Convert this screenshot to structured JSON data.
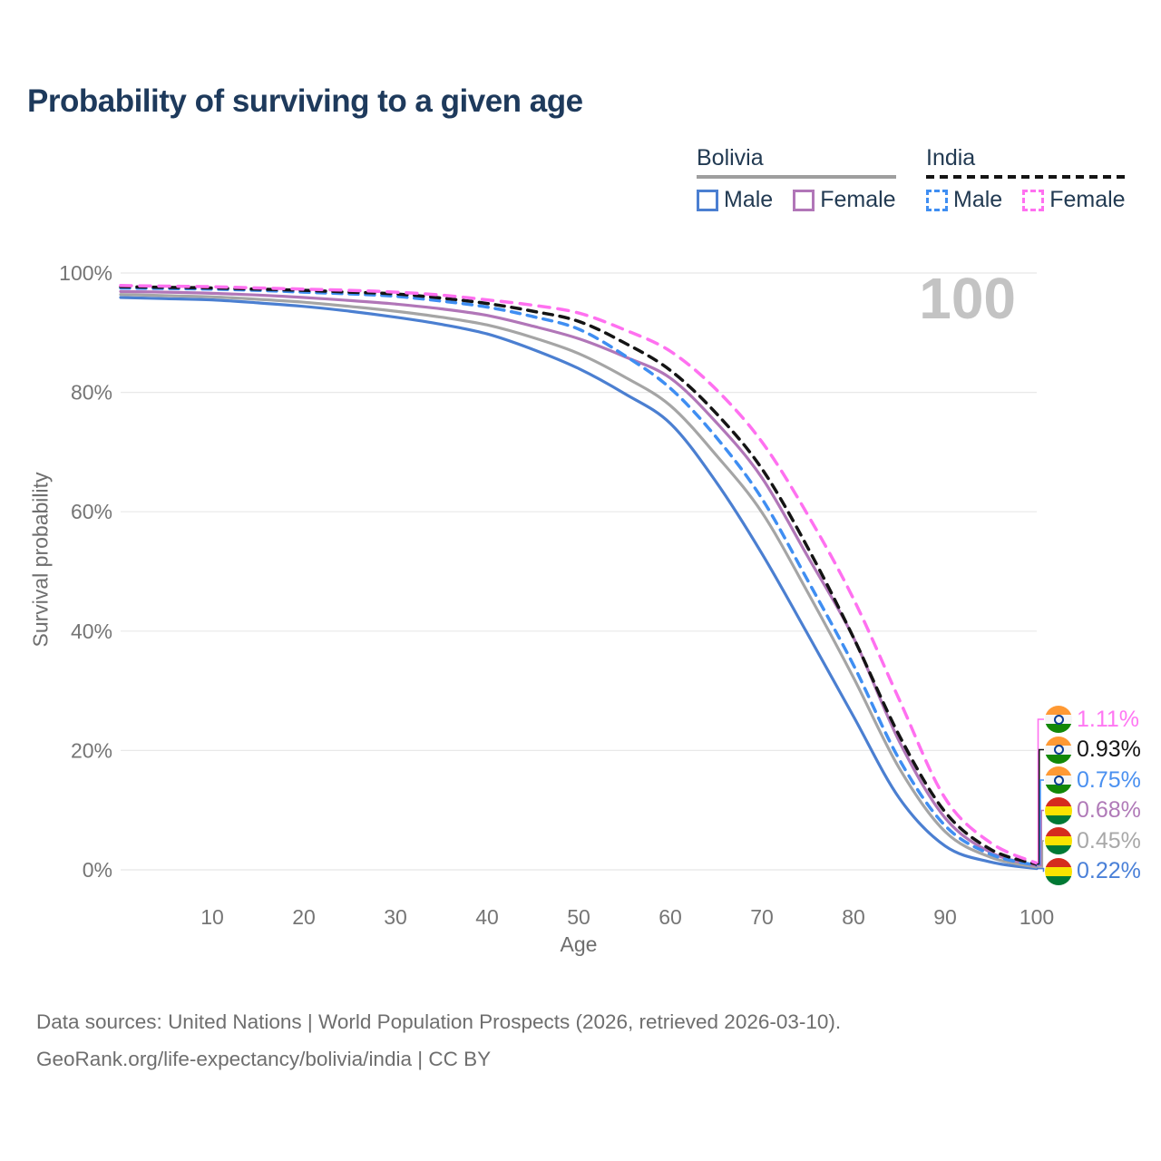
{
  "title": "Probability of surviving to a given age",
  "watermark_age": "100",
  "legend": {
    "groups": [
      {
        "country": "Bolivia",
        "rule_style": "solid",
        "rule_color": "#9e9e9e",
        "items": [
          {
            "label": "Male",
            "color": "#4b7fd1",
            "dashed": false
          },
          {
            "label": "Female",
            "color": "#b176b8",
            "dashed": false
          }
        ]
      },
      {
        "country": "India",
        "rule_style": "dashed",
        "rule_color": "#141414",
        "items": [
          {
            "label": "Male",
            "color": "#3f8ef2",
            "dashed": true
          },
          {
            "label": "Female",
            "color": "#ff70f0",
            "dashed": true
          }
        ]
      }
    ]
  },
  "chart_data": {
    "type": "line",
    "title": "Probability of surviving to a given age",
    "xlabel": "Age",
    "ylabel": "Survival probability",
    "xlim": [
      0,
      100
    ],
    "ylim": [
      0,
      100
    ],
    "grid": "horizontal",
    "legend_position": "top-right",
    "xticks": [
      10,
      20,
      30,
      40,
      50,
      60,
      70,
      80,
      90,
      100
    ],
    "yticks": [
      {
        "value": 0,
        "label": "0%"
      },
      {
        "value": 20,
        "label": "20%"
      },
      {
        "value": 40,
        "label": "40%"
      },
      {
        "value": 60,
        "label": "60%"
      },
      {
        "value": 80,
        "label": "80%"
      },
      {
        "value": 100,
        "label": "100%"
      }
    ],
    "x": [
      0,
      5,
      10,
      15,
      20,
      25,
      30,
      35,
      40,
      45,
      50,
      55,
      60,
      65,
      70,
      75,
      80,
      85,
      90,
      95,
      100
    ],
    "series": [
      {
        "id": "india-female",
        "country": "India",
        "sex": "Female",
        "color": "#ff70f0",
        "label_color": "#ff77f3",
        "dash": "12 9",
        "flag": "india",
        "end_label": "1.11%",
        "values": [
          97.9,
          97.8,
          97.7,
          97.5,
          97.3,
          97.1,
          96.8,
          96.3,
          95.5,
          94.6,
          93.3,
          90.5,
          86.9,
          80.5,
          71.7,
          59.5,
          45.4,
          28.5,
          12.0,
          4.5,
          1.11
        ]
      },
      {
        "id": "india-both",
        "country": "India",
        "sex": "Both",
        "color": "#141414",
        "label_color": "#141414",
        "dash": "10 8",
        "flag": "india",
        "end_label": "0.93%",
        "values": [
          97.7,
          97.6,
          97.5,
          97.3,
          97.1,
          96.8,
          96.5,
          95.8,
          94.9,
          93.6,
          91.9,
          88.3,
          83.7,
          76.5,
          67.2,
          54.0,
          38.9,
          22.5,
          9.7,
          3.4,
          0.93
        ]
      },
      {
        "id": "india-male",
        "country": "India",
        "sex": "Male",
        "color": "#3f8ef2",
        "label_color": "#4a90f0",
        "dash": "10 8",
        "flag": "india",
        "end_label": "0.75%",
        "values": [
          97.5,
          97.4,
          97.3,
          97.1,
          96.8,
          96.5,
          96.1,
          95.3,
          94.3,
          92.7,
          90.6,
          86.2,
          80.7,
          72.5,
          62.2,
          48.5,
          34.3,
          18.5,
          7.4,
          2.6,
          0.75
        ]
      },
      {
        "id": "bolivia-female",
        "country": "Bolivia",
        "sex": "Female",
        "color": "#b176b8",
        "label_color": "#b07ab8",
        "dash": null,
        "flag": "bolivia",
        "end_label": "0.68%",
        "values": [
          96.9,
          96.8,
          96.6,
          96.3,
          95.9,
          95.4,
          94.8,
          94.0,
          92.9,
          91.1,
          89.0,
          86.0,
          82.4,
          75.0,
          65.7,
          52.5,
          38.9,
          21.5,
          8.7,
          2.9,
          0.68
        ]
      },
      {
        "id": "bolivia-both",
        "country": "Bolivia",
        "sex": "Both",
        "color": "#a5a5a5",
        "label_color": "#a8a8a8",
        "dash": null,
        "flag": "bolivia",
        "end_label": "0.45%",
        "values": [
          96.4,
          96.2,
          96.0,
          95.6,
          95.1,
          94.4,
          93.6,
          92.6,
          91.3,
          89.2,
          86.5,
          82.6,
          77.8,
          69.5,
          59.9,
          46.5,
          32.2,
          17.0,
          6.4,
          2.1,
          0.45
        ]
      },
      {
        "id": "bolivia-male",
        "country": "Bolivia",
        "sex": "Male",
        "color": "#4b7fd1",
        "label_color": "#4a80d8",
        "dash": null,
        "flag": "bolivia",
        "end_label": "0.22%",
        "values": [
          95.9,
          95.7,
          95.5,
          95.0,
          94.4,
          93.6,
          92.6,
          91.4,
          89.8,
          87.2,
          84.0,
          79.8,
          74.8,
          65.0,
          53.0,
          39.5,
          25.7,
          12.0,
          4.0,
          1.3,
          0.22
        ]
      }
    ]
  },
  "footer": {
    "line1": "Data sources: United Nations | World Population Prospects (2026, retrieved 2026-03-10).",
    "line2": "GeoRank.org/life-expectancy/bolivia/india | CC BY"
  }
}
